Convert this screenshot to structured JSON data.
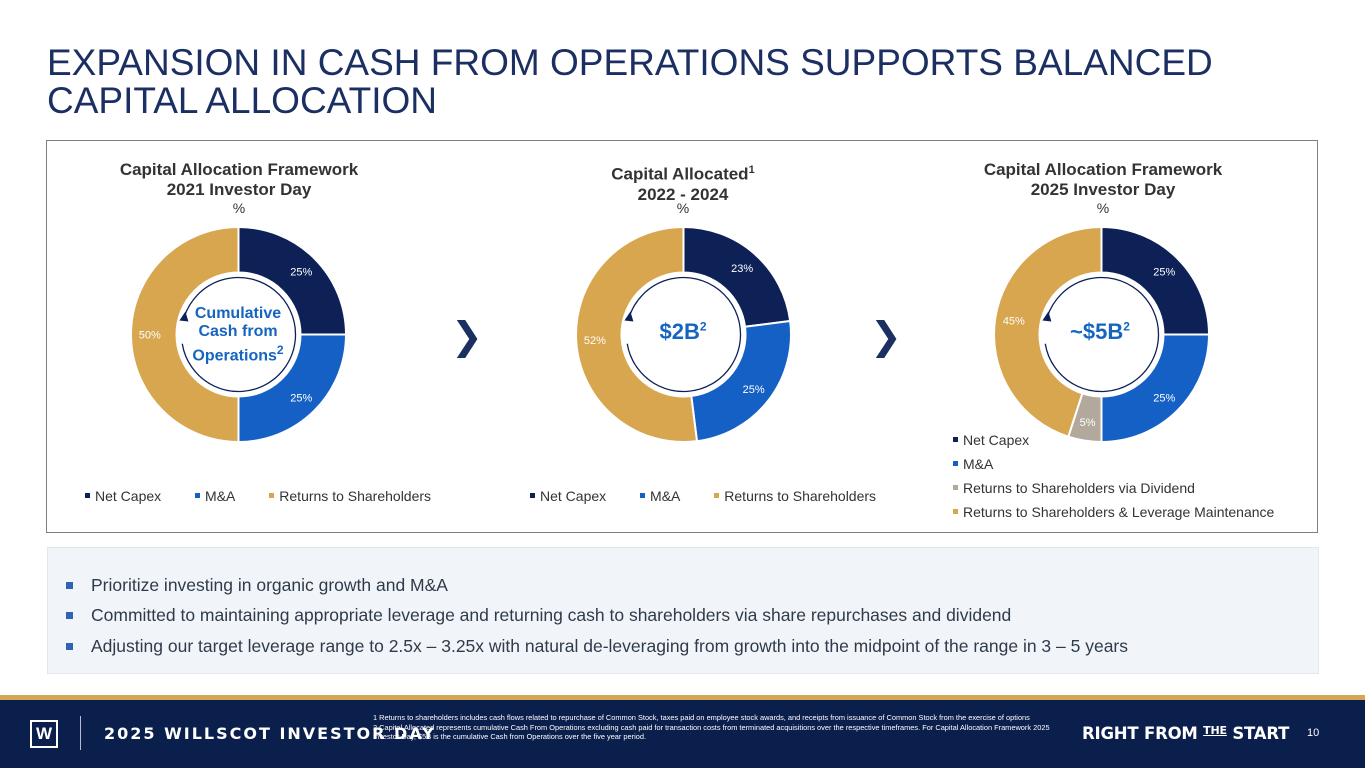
{
  "title": "EXPANSION IN CASH FROM OPERATIONS SUPPORTS BALANCED CAPITAL ALLOCATION",
  "colors": {
    "net_capex": "#0d2157",
    "mna": "#1560c4",
    "returns": "#d7a64f",
    "dividend": "#b2a89c",
    "title": "#1b2f63"
  },
  "chart_data": [
    {
      "type": "pie",
      "title_line1": "Capital Allocation Framework",
      "title_line2": "2021 Investor Day",
      "unit": "%",
      "center_label_lines": [
        "Cumulative",
        "Cash from",
        "Operations"
      ],
      "center_sup": "2",
      "categories": [
        "Net Capex",
        "M&A",
        "Returns to Shareholders"
      ],
      "values": [
        25,
        25,
        50
      ],
      "labels": [
        "25%",
        "25%",
        "50%"
      ],
      "legend": [
        "Net Capex",
        "M&A",
        "Returns to Shareholders"
      ],
      "legend_placement": "bottom"
    },
    {
      "type": "pie",
      "title_line1": "Capital Allocated",
      "title_sup": "1",
      "title_line2": "2022 - 2024",
      "unit": "%",
      "center_label": "$2B",
      "center_sup": "2",
      "categories": [
        "Net Capex",
        "M&A",
        "Returns to Shareholders"
      ],
      "values": [
        23,
        25,
        52
      ],
      "labels": [
        "23%",
        "25%",
        "52%"
      ],
      "legend": [
        "Net Capex",
        "M&A",
        "Returns to Shareholders"
      ],
      "legend_placement": "bottom"
    },
    {
      "type": "pie",
      "title_line1": "Capital Allocation Framework",
      "title_line2": "2025 Investor Day",
      "unit": "%",
      "center_label": "~$5B",
      "center_sup": "2",
      "categories": [
        "Net Capex",
        "M&A",
        "Returns to Shareholders via Dividend",
        "Returns to Shareholders & Leverage Maintenance"
      ],
      "values": [
        25,
        25,
        5,
        45
      ],
      "labels": [
        "25%",
        "25%",
        "5%",
        "45%"
      ],
      "legend": [
        "Net Capex",
        "M&A",
        "Returns to Shareholders via Dividend",
        "Returns to Shareholders & Leverage Maintenance"
      ],
      "legend_placement": "bottom-right"
    }
  ],
  "arrows": [
    "❯",
    "❯"
  ],
  "bullets": [
    "Prioritize investing in organic growth and M&A",
    "Committed to maintaining appropriate leverage and returning cash to shareholders via share repurchases and dividend",
    "Adjusting our target leverage range to 2.5x – 3.25x with natural de-leveraging from growth into the midpoint of the range in 3 – 5 years"
  ],
  "footer": {
    "logo_letter": "W",
    "event": "2025 WILLSCOT INVESTOR DAY",
    "footnote1": "1 Returns to shareholders includes cash flows related to repurchase of Common Stock, taxes paid on employee stock awards, and receipts from issuance of Common Stock from the exercise of options",
    "footnote2": "2 Capital Allocated represents cumulative Cash From Operations excluding cash paid for transaction costs from terminated acquisitions over the respective timeframes. For Capital Allocation Framework 2025 Investor Day, $5B is the cumulative Cash from Operations over the five year period.",
    "tagline_a": "RIGHT FROM ",
    "tagline_b": "THE",
    "tagline_c": " START",
    "page_number": "10"
  }
}
